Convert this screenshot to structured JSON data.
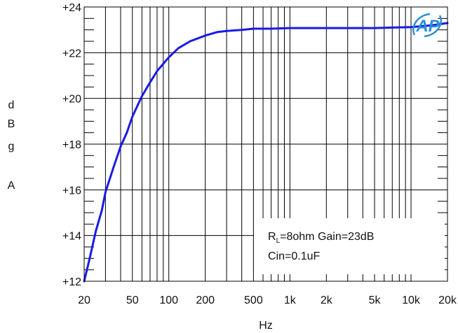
{
  "chart_data": {
    "type": "line",
    "title": "",
    "xlabel": "Hz",
    "ylabel": [
      "d",
      "B",
      "g",
      "A"
    ],
    "x_scale": "log",
    "xlim": [
      20,
      20000
    ],
    "ylim": [
      12,
      24
    ],
    "y_ticks": [
      12,
      14,
      16,
      18,
      20,
      22,
      24
    ],
    "y_tick_labels": [
      "+12",
      "+14",
      "+16",
      "+18",
      "+20",
      "+22",
      "+24"
    ],
    "x_ticks": [
      20,
      50,
      100,
      200,
      500,
      1000,
      2000,
      5000,
      10000,
      20000
    ],
    "x_tick_labels": [
      "20",
      "50",
      "100",
      "200",
      "500",
      "1k",
      "2k",
      "5k",
      "10k",
      "20k"
    ],
    "grid": true,
    "series": [
      {
        "color": "#1a1ae6",
        "x": [
          20,
          22,
          25,
          28,
          30,
          35,
          40,
          45,
          50,
          60,
          70,
          80,
          100,
          120,
          150,
          200,
          250,
          300,
          400,
          500,
          700,
          1000,
          2000,
          3000,
          5000,
          7000,
          10000,
          15000,
          20000
        ],
        "y": [
          12.0,
          12.9,
          14.2,
          15.1,
          15.9,
          17.0,
          17.9,
          18.5,
          19.2,
          20.1,
          20.7,
          21.2,
          21.8,
          22.2,
          22.5,
          22.75,
          22.9,
          22.95,
          23.0,
          23.05,
          23.05,
          23.08,
          23.08,
          23.08,
          23.08,
          23.1,
          23.12,
          23.2,
          23.3
        ]
      }
    ],
    "legend": {
      "position": "bottom-right",
      "lines": [
        "RL=8ohm Gain=23dB",
        "Cin=0.1uF"
      ]
    }
  },
  "logo_text": "AP",
  "legend_text": {
    "r": "R",
    "sub": "L",
    "line1_rest": "=8ohm Gain=23dB",
    "line2": "Cin=0.1uF"
  }
}
